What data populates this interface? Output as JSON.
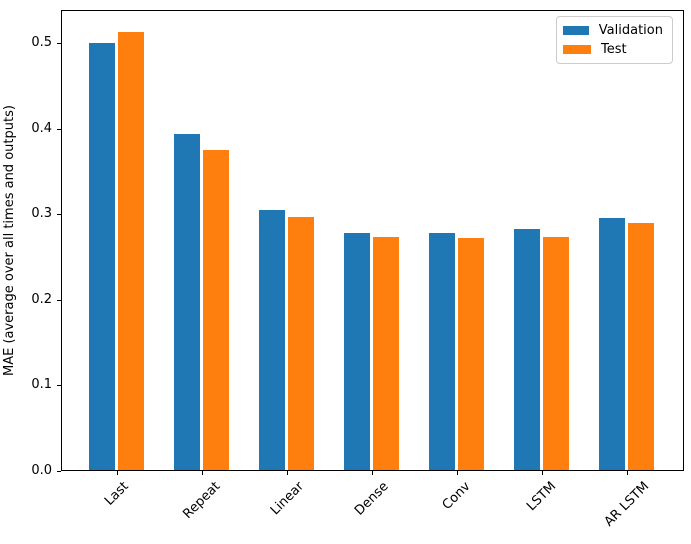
{
  "chart_data": {
    "type": "bar",
    "title": "",
    "xlabel": "",
    "ylabel": "MAE (average over all times and outputs)",
    "categories": [
      "Last",
      "Repeat",
      "Linear",
      "Dense",
      "Conv",
      "LSTM",
      "AR LSTM"
    ],
    "series": [
      {
        "name": "Validation",
        "color": "#1f77b4",
        "values": [
          0.5,
          0.394,
          0.305,
          0.278,
          0.278,
          0.283,
          0.295
        ]
      },
      {
        "name": "Test",
        "color": "#ff7f0e",
        "values": [
          0.513,
          0.375,
          0.297,
          0.273,
          0.272,
          0.273,
          0.29
        ]
      }
    ],
    "ylim": [
      0,
      0.539
    ],
    "yticks": [
      0.0,
      0.1,
      0.2,
      0.3,
      0.4,
      0.5
    ],
    "ytick_labels": [
      "0.0",
      "0.1",
      "0.2",
      "0.3",
      "0.4",
      "0.5"
    ],
    "xtick_rotation": 45,
    "grid": false,
    "legend_position": "upper right",
    "bar_width_units": 0.3,
    "bar_offset_units": 0.17
  }
}
